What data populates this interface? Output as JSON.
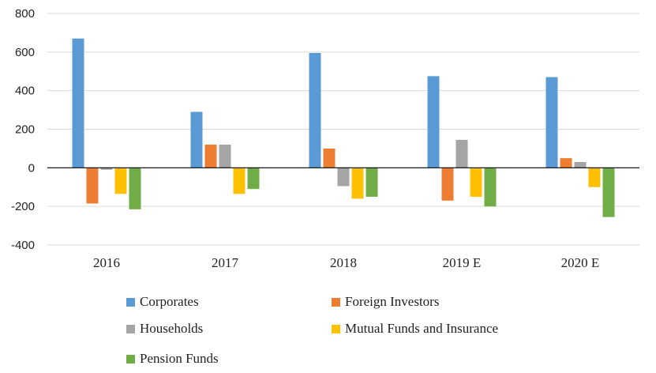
{
  "chart_data": {
    "type": "bar",
    "categories": [
      "2016",
      "2017",
      "2018",
      "2019 E",
      "2020 E"
    ],
    "series": [
      {
        "name": "Corporates",
        "color": "#5b9bd5",
        "values": [
          670,
          290,
          595,
          475,
          470
        ]
      },
      {
        "name": "Foreign Investors",
        "color": "#ed7d31",
        "values": [
          -185,
          120,
          100,
          -170,
          50
        ]
      },
      {
        "name": "Households",
        "color": "#a5a5a5",
        "values": [
          -10,
          120,
          -95,
          145,
          30
        ]
      },
      {
        "name": "Mutual Funds and Insurance",
        "color": "#ffc000",
        "values": [
          -135,
          -135,
          -160,
          -150,
          -100
        ]
      },
      {
        "name": "Pension Funds",
        "color": "#70ad47",
        "values": [
          -215,
          -110,
          -150,
          -200,
          -255
        ]
      }
    ],
    "yticks": [
      "-400",
      "-200",
      "0",
      "200",
      "400",
      "600",
      "800"
    ],
    "ylim": [
      -400,
      800
    ],
    "grid": true,
    "legend_position": "bottom"
  }
}
